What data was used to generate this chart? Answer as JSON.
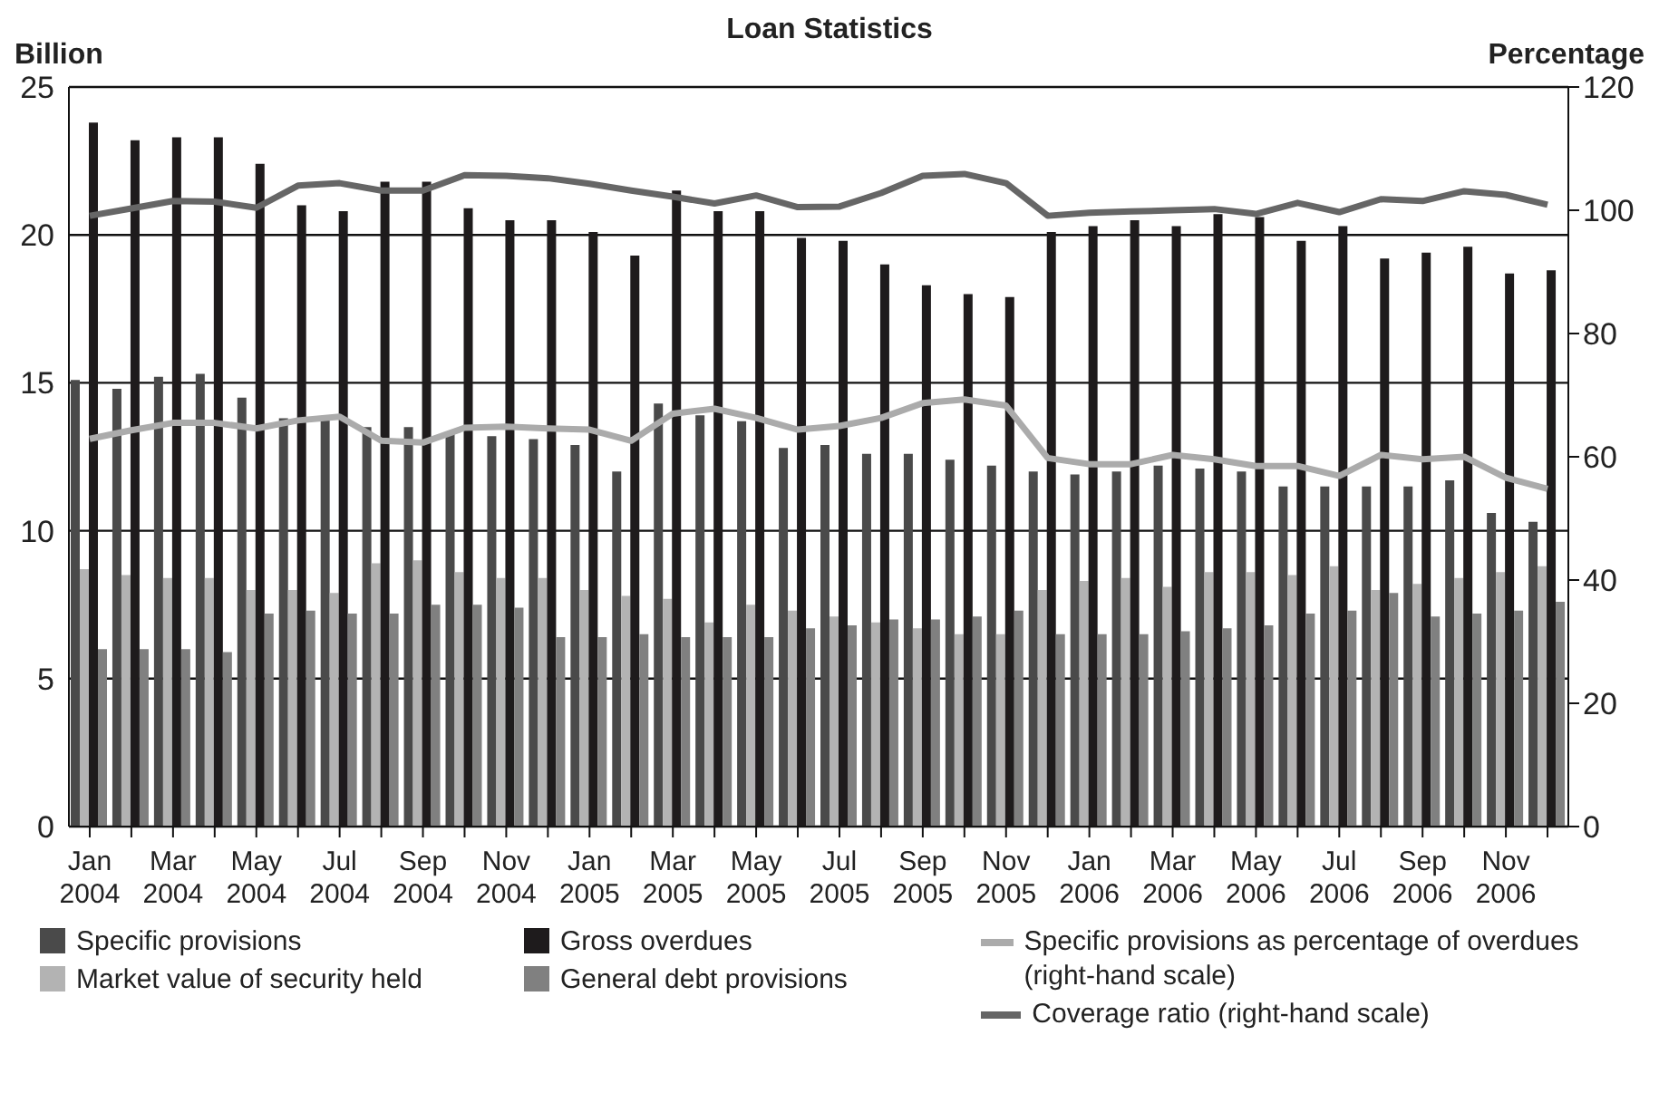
{
  "chart_data": {
    "type": "bar",
    "title": "Loan Statistics",
    "ylabel": "Billion",
    "y2label": "Percentage",
    "categories": [
      "Jan 2004",
      null,
      "Mar 2004",
      null,
      "May 2004",
      null,
      "Jul 2004",
      null,
      "Sep 2004",
      null,
      "Nov 2004",
      null,
      "Jan 2005",
      null,
      "Mar 2005",
      null,
      "May 2005",
      null,
      "Jul 2005",
      null,
      "Sep 2005",
      null,
      "Nov 2005",
      null,
      "Jan 2006",
      null,
      "Mar 2006",
      null,
      "May 2006",
      null,
      "Jul 2006",
      null,
      "Sep 2006",
      null,
      "Nov 2006",
      null
    ],
    "series": [
      {
        "name": "Specific provisions",
        "color": "#4a4a4a",
        "values": [
          15.1,
          14.8,
          15.2,
          15.3,
          14.5,
          13.8,
          13.8,
          13.5,
          13.5,
          13.3,
          13.2,
          13.1,
          12.9,
          12.0,
          14.3,
          13.9,
          13.7,
          12.8,
          12.9,
          12.6,
          12.6,
          12.4,
          12.2,
          12.0,
          11.9,
          12.0,
          12.2,
          12.1,
          12.0,
          11.5,
          11.5,
          11.5,
          11.5,
          11.7,
          10.6,
          10.3
        ]
      },
      {
        "name": "Market value of security held",
        "color": "#b3b3b3",
        "values": [
          8.7,
          8.5,
          8.4,
          8.4,
          8.0,
          8.0,
          7.9,
          8.9,
          9.0,
          8.6,
          8.4,
          8.4,
          8.0,
          7.8,
          7.7,
          6.9,
          7.5,
          7.3,
          7.1,
          6.9,
          6.7,
          6.5,
          6.5,
          8.0,
          8.3,
          8.4,
          8.1,
          8.6,
          8.6,
          8.5,
          8.8,
          8.0,
          8.2,
          8.4,
          8.6,
          8.8
        ]
      },
      {
        "name": "Gross overdues",
        "color": "#1e1b1c",
        "values": [
          23.8,
          23.2,
          23.3,
          23.3,
          22.4,
          21.0,
          20.8,
          21.8,
          21.8,
          20.9,
          20.5,
          20.5,
          20.1,
          19.3,
          21.5,
          20.8,
          20.8,
          19.9,
          19.8,
          19.0,
          18.3,
          18.0,
          17.9,
          20.1,
          20.3,
          20.5,
          20.3,
          20.7,
          20.6,
          19.8,
          20.3,
          19.2,
          19.4,
          19.6,
          18.7,
          18.8
        ]
      },
      {
        "name": "General debt provisions",
        "color": "#808080",
        "values": [
          6.0,
          6.0,
          6.0,
          5.9,
          7.2,
          7.3,
          7.2,
          7.2,
          7.5,
          7.5,
          7.4,
          6.4,
          6.4,
          6.5,
          6.4,
          6.4,
          6.4,
          6.7,
          6.8,
          7.0,
          7.0,
          7.1,
          7.3,
          6.5,
          6.5,
          6.5,
          6.6,
          6.7,
          6.8,
          7.2,
          7.3,
          7.9,
          7.1,
          7.2,
          7.3,
          7.6
        ]
      },
      {
        "name": "Specific provisions as percentage of overdues (right-hand scale)",
        "type": "line",
        "axis": "y2",
        "color": "#ababab",
        "values": [
          62.9,
          64.3,
          65.5,
          65.5,
          64.6,
          65.9,
          66.5,
          62.6,
          62.3,
          64.7,
          64.9,
          64.6,
          64.4,
          62.6,
          67.0,
          67.8,
          66.3,
          64.4,
          65.0,
          66.3,
          68.7,
          69.3,
          68.3,
          59.8,
          58.8,
          58.8,
          60.3,
          59.6,
          58.5,
          58.5,
          56.9,
          60.3,
          59.6,
          60.0,
          56.6,
          54.8
        ]
      },
      {
        "name": "Coverage ratio (right-hand scale)",
        "type": "line",
        "axis": "y2",
        "color": "#666666",
        "values": [
          99.1,
          100.3,
          101.5,
          101.4,
          100.4,
          104.0,
          104.4,
          103.2,
          103.2,
          105.7,
          105.6,
          105.2,
          104.3,
          103.2,
          102.2,
          101.1,
          102.4,
          100.5,
          100.6,
          102.8,
          105.6,
          105.9,
          104.4,
          99.1,
          99.6,
          99.8,
          100.0,
          100.2,
          99.4,
          101.2,
          99.7,
          101.8,
          101.5,
          103.1,
          102.5,
          100.9
        ]
      }
    ],
    "ylim": [
      0,
      25
    ],
    "yticks": [
      0,
      5,
      10,
      15,
      20,
      25
    ],
    "y2lim": [
      0,
      120
    ],
    "y2ticks": [
      0,
      20,
      40,
      60,
      80,
      100,
      120
    ],
    "grid": "y",
    "legend": "bottom",
    "marker": "none",
    "line_style": "solid"
  }
}
